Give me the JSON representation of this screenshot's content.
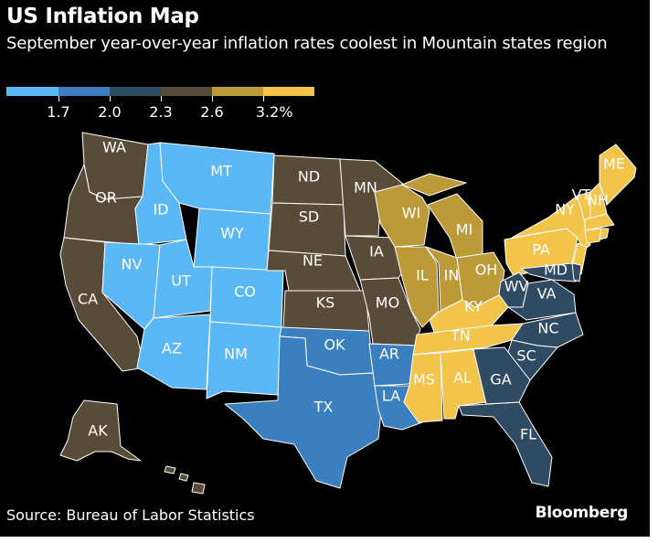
{
  "header": {
    "title": "US Inflation Map",
    "subtitle": "September year-over-year inflation rates coolest in Mountain states region"
  },
  "legend": {
    "colors": [
      "#5bb8f6",
      "#3a7fbf",
      "#2f4a63",
      "#584c38",
      "#bd9a38",
      "#f2c44a"
    ],
    "tick_labels": [
      "1.7",
      "2.0",
      "2.3",
      "2.6",
      "3.2%"
    ]
  },
  "bins": {
    "c1": "#5bb8f6",
    "c2": "#3a7fbf",
    "c3": "#2f4a63",
    "c4": "#584c38",
    "c5": "#bd9a38",
    "c6": "#f2c44a"
  },
  "states": [
    {
      "abbr": "WA",
      "bin": "c4"
    },
    {
      "abbr": "OR",
      "bin": "c4"
    },
    {
      "abbr": "CA",
      "bin": "c4"
    },
    {
      "abbr": "AK",
      "bin": "c4"
    },
    {
      "abbr": "HI",
      "bin": "c4"
    },
    {
      "abbr": "ID",
      "bin": "c1"
    },
    {
      "abbr": "NV",
      "bin": "c1"
    },
    {
      "abbr": "MT",
      "bin": "c1"
    },
    {
      "abbr": "WY",
      "bin": "c1"
    },
    {
      "abbr": "UT",
      "bin": "c1"
    },
    {
      "abbr": "CO",
      "bin": "c1"
    },
    {
      "abbr": "AZ",
      "bin": "c1"
    },
    {
      "abbr": "NM",
      "bin": "c1"
    },
    {
      "abbr": "ND",
      "bin": "c4"
    },
    {
      "abbr": "SD",
      "bin": "c4"
    },
    {
      "abbr": "NE",
      "bin": "c4"
    },
    {
      "abbr": "KS",
      "bin": "c4"
    },
    {
      "abbr": "MN",
      "bin": "c4"
    },
    {
      "abbr": "IA",
      "bin": "c4"
    },
    {
      "abbr": "MO",
      "bin": "c4"
    },
    {
      "abbr": "OK",
      "bin": "c2"
    },
    {
      "abbr": "TX",
      "bin": "c2"
    },
    {
      "abbr": "AR",
      "bin": "c2"
    },
    {
      "abbr": "LA",
      "bin": "c2"
    },
    {
      "abbr": "WI",
      "bin": "c5"
    },
    {
      "abbr": "MI",
      "bin": "c5"
    },
    {
      "abbr": "IL",
      "bin": "c5"
    },
    {
      "abbr": "IN",
      "bin": "c5"
    },
    {
      "abbr": "OH",
      "bin": "c5"
    },
    {
      "abbr": "KY",
      "bin": "c6"
    },
    {
      "abbr": "TN",
      "bin": "c6"
    },
    {
      "abbr": "MS",
      "bin": "c6"
    },
    {
      "abbr": "AL",
      "bin": "c6"
    },
    {
      "abbr": "PA",
      "bin": "c6"
    },
    {
      "abbr": "NY",
      "bin": "c6"
    },
    {
      "abbr": "VT",
      "bin": "c6"
    },
    {
      "abbr": "NH",
      "bin": "c6"
    },
    {
      "abbr": "ME",
      "bin": "c6"
    },
    {
      "abbr": "MA",
      "bin": "c6"
    },
    {
      "abbr": "CT",
      "bin": "c6"
    },
    {
      "abbr": "RI",
      "bin": "c6"
    },
    {
      "abbr": "NJ",
      "bin": "c6"
    },
    {
      "abbr": "WV",
      "bin": "c3"
    },
    {
      "abbr": "VA",
      "bin": "c3"
    },
    {
      "abbr": "MD",
      "bin": "c3"
    },
    {
      "abbr": "DE",
      "bin": "c3"
    },
    {
      "abbr": "NC",
      "bin": "c3"
    },
    {
      "abbr": "SC",
      "bin": "c3"
    },
    {
      "abbr": "GA",
      "bin": "c3"
    },
    {
      "abbr": "FL",
      "bin": "c3"
    }
  ],
  "labels": {
    "WA": "WA",
    "OR": "OR",
    "CA": "CA",
    "AK": "AK",
    "ID": "ID",
    "NV": "NV",
    "MT": "MT",
    "WY": "WY",
    "UT": "UT",
    "CO": "CO",
    "AZ": "AZ",
    "NM": "NM",
    "ND": "ND",
    "SD": "SD",
    "NE": "NE",
    "KS": "KS",
    "MN": "MN",
    "IA": "IA",
    "MO": "MO",
    "OK": "OK",
    "TX": "TX",
    "AR": "AR",
    "LA": "LA",
    "WI": "WI",
    "MI": "MI",
    "IL": "IL",
    "IN": "IN",
    "OH": "OH",
    "KY": "KY",
    "TN": "TN",
    "MS": "MS",
    "AL": "AL",
    "PA": "PA",
    "NY": "NY",
    "VT": "VT",
    "NH": "NH",
    "ME": "ME",
    "WV": "WV",
    "VA": "VA",
    "MD": "MD",
    "NC": "NC",
    "SC": "SC",
    "GA": "GA",
    "FL": "FL"
  },
  "footer": {
    "source": "Source: Bureau of Labor Statistics",
    "brand": "Bloomberg"
  }
}
